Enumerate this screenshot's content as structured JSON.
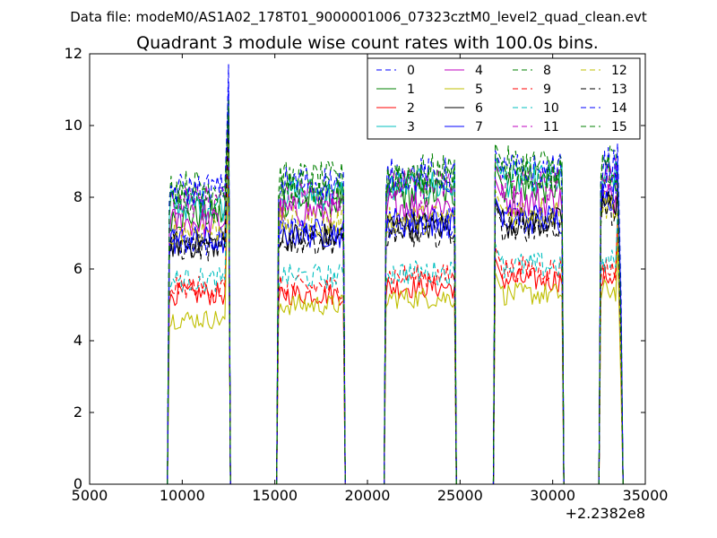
{
  "figure": {
    "suptitle": "Data file: modeM0/AS1A02_178T01_9000001006_07323cztM0_level2_quad_clean.evt"
  },
  "chart_data": {
    "type": "line",
    "title": "Quadrant 3 module wise count rates with 100.0s bins.",
    "xlabel": "",
    "ylabel": "",
    "x_offset_label": "+2.2382e8",
    "xlim": [
      5000,
      35000
    ],
    "ylim": [
      0,
      12
    ],
    "x_ticks": [
      5000,
      10000,
      15000,
      20000,
      25000,
      30000,
      35000
    ],
    "y_ticks": [
      0,
      2,
      4,
      6,
      8,
      10,
      12
    ],
    "grid": false,
    "legend_position": "top-right",
    "legend_columns": 4,
    "x_segments": [
      {
        "start": 9300,
        "end": 12500
      },
      {
        "start": 15200,
        "end": 18700
      },
      {
        "start": 21000,
        "end": 24700
      },
      {
        "start": 26900,
        "end": 30500
      },
      {
        "start": 32600,
        "end": 33700
      }
    ],
    "series": [
      {
        "name": "0",
        "color": "#0000ff",
        "dash": "dashed",
        "levels": [
          6.7,
          7.1,
          7.3,
          7.4,
          8.0
        ],
        "spike": 11.7
      },
      {
        "name": "1",
        "color": "#008000",
        "dash": "solid",
        "levels": [
          7.5,
          7.9,
          8.1,
          8.3,
          8.4
        ],
        "spike": 10.4
      },
      {
        "name": "2",
        "color": "#ff0000",
        "dash": "solid",
        "levels": [
          5.3,
          5.3,
          5.5,
          5.7,
          5.8
        ],
        "spike": 9.5
      },
      {
        "name": "3",
        "color": "#00bfbf",
        "dash": "solid",
        "levels": [
          7.8,
          8.1,
          8.3,
          8.5,
          8.6
        ],
        "spike": 10.2
      },
      {
        "name": "4",
        "color": "#bf00bf",
        "dash": "solid",
        "levels": [
          7.3,
          7.6,
          7.8,
          7.9,
          8.0
        ],
        "spike": 10.0
      },
      {
        "name": "5",
        "color": "#bfbf00",
        "dash": "solid",
        "levels": [
          4.6,
          5.0,
          5.2,
          5.3,
          5.4
        ],
        "spike": 9.0
      },
      {
        "name": "6",
        "color": "#000000",
        "dash": "solid",
        "levels": [
          6.7,
          6.9,
          7.2,
          7.3,
          7.8
        ],
        "spike": 10.5
      },
      {
        "name": "7",
        "color": "#0000ff",
        "dash": "solid",
        "levels": [
          6.8,
          7.0,
          7.3,
          7.4,
          8.1
        ],
        "spike": 10.9
      },
      {
        "name": "8",
        "color": "#008000",
        "dash": "dashed",
        "levels": [
          8.3,
          8.5,
          8.7,
          8.9,
          9.0
        ],
        "spike": 10.5
      },
      {
        "name": "9",
        "color": "#ff0000",
        "dash": "dashed",
        "levels": [
          5.5,
          5.5,
          5.8,
          6.0,
          6.0
        ],
        "spike": 9.6
      },
      {
        "name": "10",
        "color": "#00bfbf",
        "dash": "dashed",
        "levels": [
          5.7,
          5.8,
          5.9,
          6.1,
          6.2
        ],
        "spike": 9.8
      },
      {
        "name": "11",
        "color": "#bf00bf",
        "dash": "dashed",
        "levels": [
          7.9,
          8.1,
          8.3,
          8.4,
          8.6
        ],
        "spike": 10.1
      },
      {
        "name": "12",
        "color": "#bfbf00",
        "dash": "dashed",
        "levels": [
          7.1,
          7.3,
          7.4,
          7.6,
          7.8
        ],
        "spike": 9.8
      },
      {
        "name": "13",
        "color": "#000000",
        "dash": "dashed",
        "levels": [
          6.6,
          6.8,
          7.0,
          7.2,
          7.6
        ],
        "spike": 10.3
      },
      {
        "name": "14",
        "color": "#0000ff",
        "dash": "dashed",
        "levels": [
          8.2,
          8.4,
          8.6,
          8.7,
          8.9
        ],
        "spike": 11.2
      },
      {
        "name": "15",
        "color": "#008000",
        "dash": "dashed",
        "levels": [
          7.9,
          8.2,
          8.4,
          8.6,
          8.8
        ],
        "spike": 10.7
      }
    ]
  }
}
